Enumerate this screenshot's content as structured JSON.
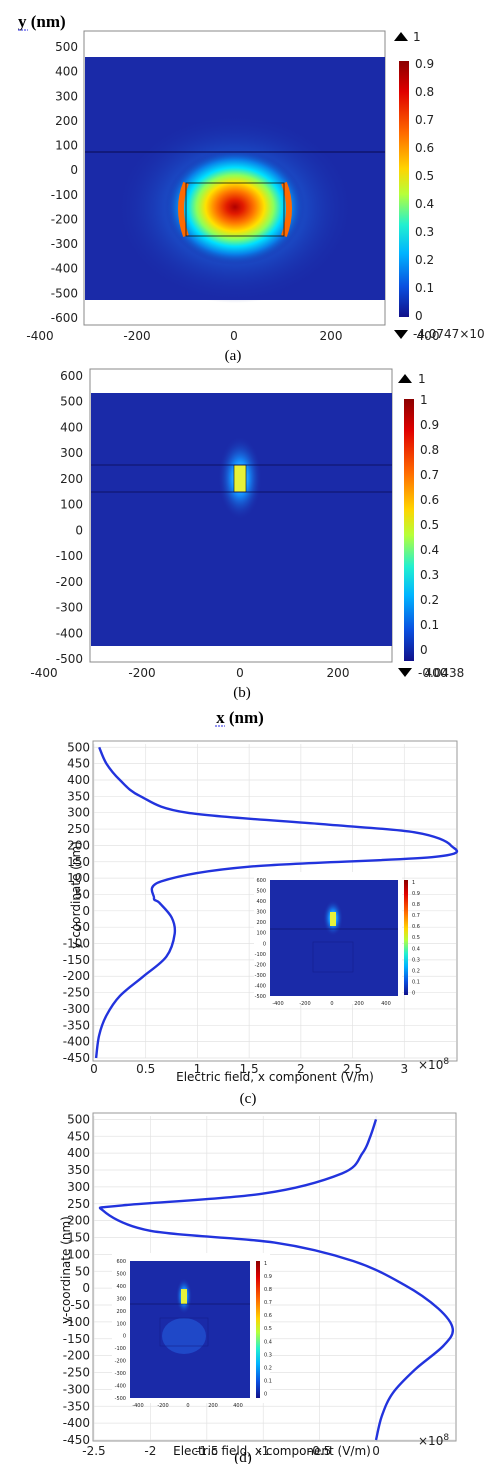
{
  "labels": {
    "y_nm": "y (nm)",
    "x_nm": "x (nm)",
    "cap_a": "(a)",
    "cap_b": "(b)",
    "cap_c": "(c)",
    "cap_d": "(d)",
    "legend_top": "1",
    "legend_bot_a": "-4.0747×10",
    "legend_bot_b": "-0.0438",
    "y_coord": "y-coordinate (nm)",
    "efield": "Electric field, x component (V/m)",
    "exp": "×10",
    "exp_pow": "8"
  },
  "colors": {
    "field_bg": "#1a2aa8",
    "curve": "#2233dd",
    "grid": "#e3e3e3"
  },
  "chart_data": [
    {
      "id": "a",
      "type": "heatmap",
      "xticks": [
        -400,
        -200,
        0,
        200,
        400
      ],
      "yticks": [
        500,
        400,
        300,
        200,
        100,
        0,
        -100,
        -200,
        -300,
        -400,
        -500,
        -600
      ],
      "colorbar_ticks": [
        0.9,
        0.8,
        0.7,
        0.6,
        0.5,
        0.4,
        0.3,
        0.2,
        0.1,
        0
      ],
      "colorbar_max": 1,
      "colorbar_min": -4.0747
    },
    {
      "id": "b",
      "type": "heatmap",
      "xticks": [
        -400,
        -200,
        0,
        200,
        400
      ],
      "yticks": [
        600,
        500,
        400,
        300,
        200,
        100,
        0,
        -100,
        -200,
        -300,
        -400,
        -500
      ],
      "colorbar_ticks": [
        1,
        0.9,
        0.8,
        0.7,
        0.6,
        0.5,
        0.4,
        0.3,
        0.2,
        0.1,
        0
      ],
      "colorbar_max": 1,
      "colorbar_min": -0.0438
    },
    {
      "id": "c",
      "type": "line",
      "xticks": [
        0,
        0.5,
        1,
        1.5,
        2,
        2.5,
        3
      ],
      "xlim": [
        0,
        3.5
      ],
      "yticks": [
        500,
        450,
        400,
        350,
        300,
        250,
        200,
        150,
        100,
        50,
        0,
        -50,
        -100,
        -150,
        -200,
        -250,
        -300,
        -350,
        -400,
        -450
      ],
      "ylim": [
        -450,
        510
      ],
      "points": [
        [
          0.05,
          500
        ],
        [
          0.12,
          450
        ],
        [
          0.25,
          400
        ],
        [
          0.45,
          350
        ],
        [
          0.9,
          300
        ],
        [
          2.2,
          265
        ],
        [
          3.1,
          240
        ],
        [
          3.45,
          200
        ],
        [
          3.3,
          165
        ],
        [
          1.5,
          135
        ],
        [
          0.65,
          90
        ],
        [
          0.58,
          40
        ],
        [
          0.63,
          25
        ],
        [
          0.75,
          -20
        ],
        [
          0.78,
          -70
        ],
        [
          0.7,
          -140
        ],
        [
          0.48,
          -200
        ],
        [
          0.25,
          -260
        ],
        [
          0.12,
          -320
        ],
        [
          0.05,
          -380
        ],
        [
          0.02,
          -450
        ]
      ]
    },
    {
      "id": "d",
      "type": "line",
      "xticks": [
        -2.5,
        -2,
        -1.5,
        -1,
        -0.5,
        0
      ],
      "xlim": [
        -2.5,
        0.7
      ],
      "yticks": [
        500,
        450,
        400,
        350,
        300,
        250,
        200,
        150,
        100,
        50,
        0,
        -50,
        -100,
        -150,
        -200,
        -250,
        -300,
        -350,
        -400,
        -450
      ],
      "ylim": [
        -450,
        510
      ],
      "points": [
        [
          0.0,
          500
        ],
        [
          -0.05,
          450
        ],
        [
          -0.12,
          400
        ],
        [
          -0.3,
          340
        ],
        [
          -1.0,
          280
        ],
        [
          -2.25,
          245
        ],
        [
          -2.42,
          230
        ],
        [
          -2.0,
          170
        ],
        [
          -0.9,
          135
        ],
        [
          -0.2,
          80
        ],
        [
          0.25,
          10
        ],
        [
          0.55,
          -60
        ],
        [
          0.68,
          -120
        ],
        [
          0.6,
          -170
        ],
        [
          0.35,
          -240
        ],
        [
          0.15,
          -310
        ],
        [
          0.05,
          -380
        ],
        [
          0.0,
          -450
        ]
      ]
    }
  ]
}
